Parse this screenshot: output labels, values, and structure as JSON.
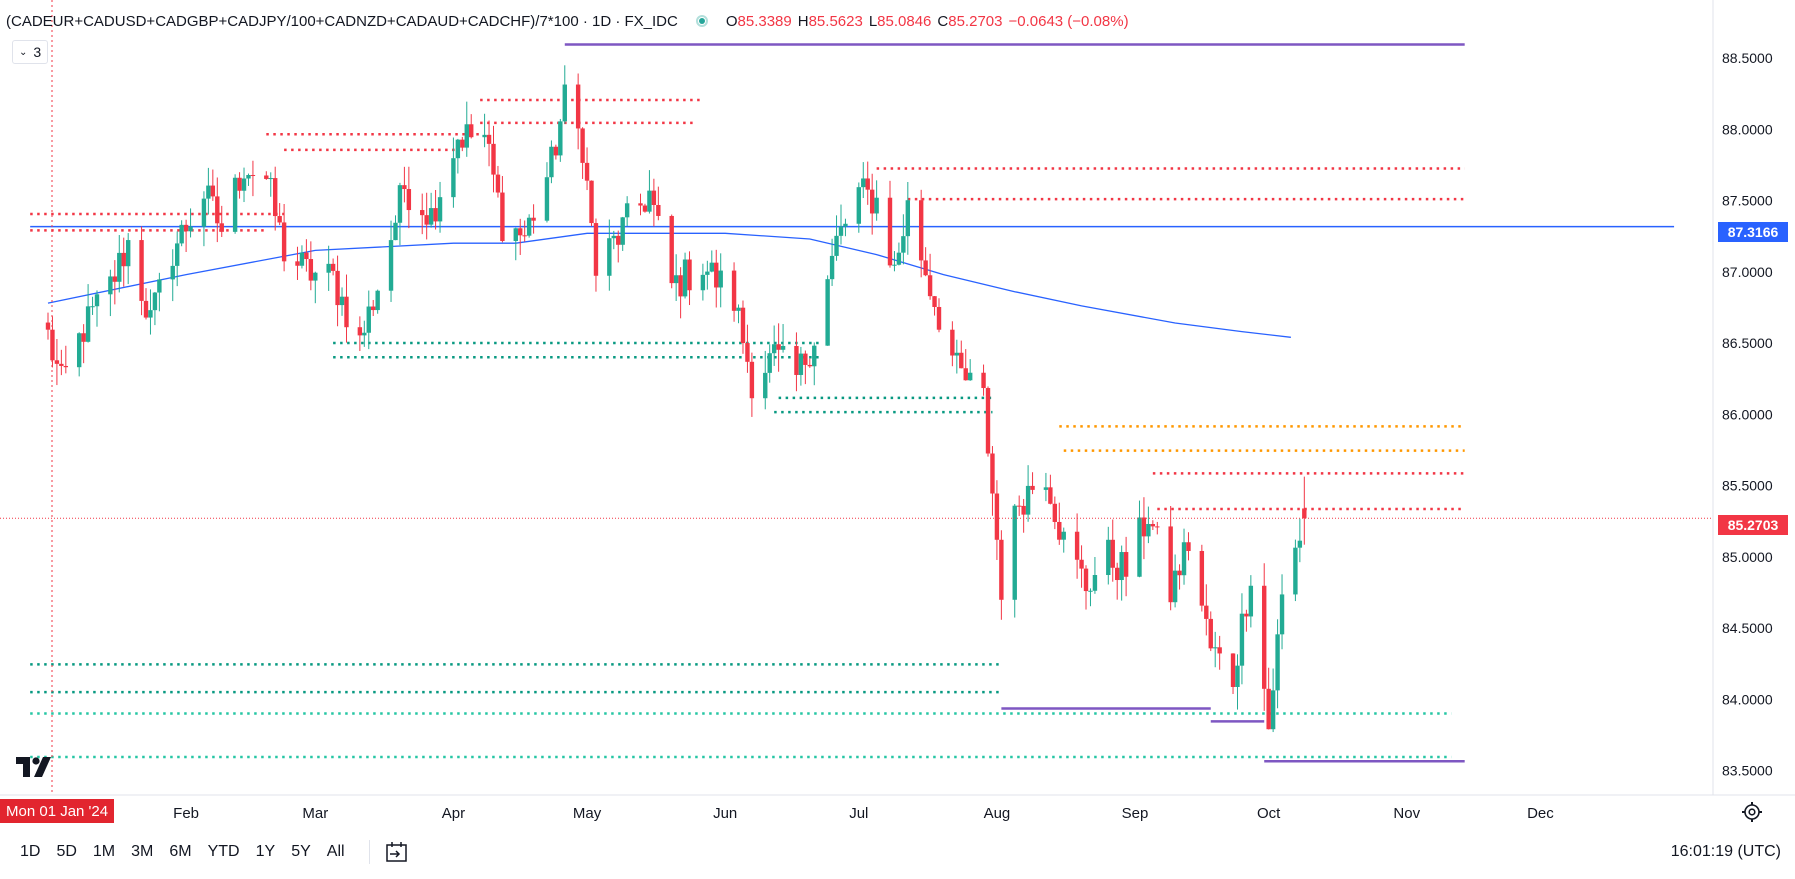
{
  "header": {
    "symbol": "(CADEUR+CADUSD+CADGBP+CADJPY/100+CADNZD+CADAUD+CADCHF)/7*100 · 1D · FX_IDC",
    "ohlc": {
      "o_label": "O",
      "o": "85.3389",
      "h_label": "H",
      "h": "85.5623",
      "l_label": "L",
      "l": "85.0846",
      "c_label": "C",
      "c": "85.2703",
      "change": "−0.0643 (−0.08%)"
    },
    "indicator_count": "3"
  },
  "crosshair_date": "Mon 01 Jan '24",
  "price_tags": {
    "level": "87.3166",
    "last": "85.2703"
  },
  "range_buttons": [
    "1D",
    "5D",
    "1M",
    "3M",
    "6M",
    "YTD",
    "1Y",
    "5Y",
    "All"
  ],
  "clock": "16:01:19 (UTC)",
  "colors": {
    "up": "#22ab94",
    "down": "#f23645",
    "ma": "#2962ff",
    "hline": "#2962ff",
    "purple": "#7e57c2",
    "orange": "#ff9800",
    "green_line": "#089981",
    "teal_line": "#26c6a4"
  },
  "chart_data": {
    "type": "candlestick",
    "yaxis": {
      "ticks": [
        "88.5000",
        "88.0000",
        "87.5000",
        "87.0000",
        "86.5000",
        "86.0000",
        "85.5000",
        "85.0000",
        "84.5000",
        "84.0000",
        "83.5000"
      ],
      "range": [
        83.4,
        88.95
      ]
    },
    "xaxis": {
      "ticks": [
        "Feb",
        "Mar",
        "Apr",
        "May",
        "Jun",
        "Jul",
        "Aug",
        "Sep",
        "Oct",
        "Nov",
        "Dec"
      ],
      "start": "2024-01-01",
      "end": "2024-12-31"
    },
    "close_path": [
      [
        "2024-01-01",
        86.55
      ],
      [
        "2024-01-04",
        86.2
      ],
      [
        "2024-01-09",
        86.6
      ],
      [
        "2024-01-15",
        86.9
      ],
      [
        "2024-01-19",
        87.2
      ],
      [
        "2024-01-24",
        86.65
      ],
      [
        "2024-01-29",
        87.15
      ],
      [
        "2024-02-05",
        87.55
      ],
      [
        "2024-02-09",
        87.3
      ],
      [
        "2024-02-14",
        87.75
      ],
      [
        "2024-02-19",
        87.65
      ],
      [
        "2024-02-23",
        87.15
      ],
      [
        "2024-02-28",
        87.0
      ],
      [
        "2024-03-05",
        86.95
      ],
      [
        "2024-03-11",
        86.5
      ],
      [
        "2024-03-15",
        86.9
      ],
      [
        "2024-03-21",
        87.6
      ],
      [
        "2024-03-27",
        87.4
      ],
      [
        "2024-04-02",
        87.95
      ],
      [
        "2024-04-08",
        87.95
      ],
      [
        "2024-04-12",
        87.35
      ],
      [
        "2024-04-17",
        87.25
      ],
      [
        "2024-04-23",
        87.75
      ],
      [
        "2024-04-26",
        88.2
      ],
      [
        "2024-04-30",
        87.9
      ],
      [
        "2024-05-03",
        87.0
      ],
      [
        "2024-05-09",
        87.3
      ],
      [
        "2024-05-15",
        87.55
      ],
      [
        "2024-05-20",
        86.9
      ],
      [
        "2024-05-27",
        87.05
      ],
      [
        "2024-06-03",
        86.8
      ],
      [
        "2024-06-07",
        86.25
      ],
      [
        "2024-06-12",
        86.4
      ],
      [
        "2024-06-17",
        86.25
      ],
      [
        "2024-06-21",
        86.55
      ],
      [
        "2024-06-26",
        87.2
      ],
      [
        "2024-07-01",
        87.55
      ],
      [
        "2024-07-05",
        87.5
      ],
      [
        "2024-07-09",
        87.0
      ],
      [
        "2024-07-12",
        87.45
      ],
      [
        "2024-07-17",
        86.9
      ],
      [
        "2024-07-23",
        86.3
      ],
      [
        "2024-07-29",
        86.1
      ],
      [
        "2024-08-02",
        84.8
      ],
      [
        "2024-08-06",
        85.4
      ],
      [
        "2024-08-12",
        85.6
      ],
      [
        "2024-08-16",
        85.1
      ],
      [
        "2024-08-21",
        84.8
      ],
      [
        "2024-08-26",
        85.0
      ],
      [
        "2024-08-30",
        84.9
      ],
      [
        "2024-09-04",
        85.3
      ],
      [
        "2024-09-09",
        84.75
      ],
      [
        "2024-09-13",
        85.1
      ],
      [
        "2024-09-18",
        84.35
      ],
      [
        "2024-09-23",
        84.15
      ],
      [
        "2024-09-27",
        84.9
      ],
      [
        "2024-10-01",
        83.8
      ],
      [
        "2024-10-04",
        84.7
      ],
      [
        "2024-10-09",
        85.27
      ]
    ],
    "moving_average": [
      [
        "2024-01-01",
        86.78
      ],
      [
        "2024-02-01",
        86.98
      ],
      [
        "2024-03-01",
        87.15
      ],
      [
        "2024-04-01",
        87.2
      ],
      [
        "2024-04-15",
        87.2
      ],
      [
        "2024-05-01",
        87.27
      ],
      [
        "2024-06-01",
        87.27
      ],
      [
        "2024-06-20",
        87.23
      ],
      [
        "2024-07-05",
        87.12
      ],
      [
        "2024-07-20",
        86.98
      ],
      [
        "2024-08-05",
        86.86
      ],
      [
        "2024-08-20",
        86.76
      ],
      [
        "2024-09-10",
        86.64
      ],
      [
        "2024-09-25",
        86.58
      ],
      [
        "2024-10-06",
        86.54
      ]
    ],
    "horizontal_lines": [
      {
        "y": 87.3166,
        "style": "solid",
        "color": "#2962ff",
        "from": "2023-12-28",
        "to": "2024-12-31",
        "width": 1.5
      },
      {
        "y": 88.595,
        "style": "solid",
        "color": "#7e57c2",
        "from": "2024-04-26",
        "to": "2024-11-14",
        "width": 2.5
      },
      {
        "y": 87.405,
        "style": "dotted",
        "color": "#f23645",
        "from": "2023-12-28",
        "to": "2024-02-23"
      },
      {
        "y": 87.29,
        "style": "dotted",
        "color": "#f23645",
        "from": "2023-12-28",
        "to": "2024-02-19"
      },
      {
        "y": 87.965,
        "style": "dotted",
        "color": "#f23645",
        "from": "2024-02-19",
        "to": "2024-04-07"
      },
      {
        "y": 87.855,
        "style": "dotted",
        "color": "#f23645",
        "from": "2024-02-23",
        "to": "2024-04-02"
      },
      {
        "y": 88.205,
        "style": "dotted",
        "color": "#f23645",
        "from": "2024-04-07",
        "to": "2024-05-27"
      },
      {
        "y": 88.045,
        "style": "dotted",
        "color": "#f23645",
        "from": "2024-04-07",
        "to": "2024-05-25"
      },
      {
        "y": 87.725,
        "style": "dotted",
        "color": "#f23645",
        "from": "2024-07-05",
        "to": "2024-11-14"
      },
      {
        "y": 87.51,
        "style": "dotted",
        "color": "#f23645",
        "from": "2024-07-12",
        "to": "2024-11-14"
      },
      {
        "y": 85.915,
        "style": "dotted",
        "color": "#ff9800",
        "from": "2024-08-15",
        "to": "2024-11-14"
      },
      {
        "y": 85.745,
        "style": "dotted",
        "color": "#ff9800",
        "from": "2024-08-16",
        "to": "2024-11-14"
      },
      {
        "y": 85.585,
        "style": "dotted",
        "color": "#f23645",
        "from": "2024-09-05",
        "to": "2024-11-14"
      },
      {
        "y": 85.335,
        "style": "dotted",
        "color": "#f23645",
        "from": "2024-09-06",
        "to": "2024-11-14"
      },
      {
        "y": 86.5,
        "style": "dotted",
        "color": "#089981",
        "from": "2024-03-05",
        "to": "2024-06-22"
      },
      {
        "y": 86.4,
        "style": "dotted",
        "color": "#089981",
        "from": "2024-03-05",
        "to": "2024-06-22"
      },
      {
        "y": 86.115,
        "style": "dotted",
        "color": "#089981",
        "from": "2024-06-13",
        "to": "2024-07-31"
      },
      {
        "y": 86.015,
        "style": "dotted",
        "color": "#089981",
        "from": "2024-06-12",
        "to": "2024-07-31"
      },
      {
        "y": 84.245,
        "style": "dotted",
        "color": "#089981",
        "from": "2023-12-28",
        "to": "2024-08-02"
      },
      {
        "y": 84.05,
        "style": "dotted",
        "color": "#089981",
        "from": "2023-12-28",
        "to": "2024-08-02"
      },
      {
        "y": 83.9,
        "style": "dotted",
        "color": "#26c6a4",
        "from": "2023-12-28",
        "to": "2024-11-11"
      },
      {
        "y": 83.595,
        "style": "dotted",
        "color": "#26c6a4",
        "from": "2023-12-28",
        "to": "2024-11-11"
      },
      {
        "y": 83.935,
        "style": "solid",
        "color": "#7e57c2",
        "from": "2024-08-02",
        "to": "2024-09-18",
        "width": 2.5
      },
      {
        "y": 83.845,
        "style": "solid",
        "color": "#7e57c2",
        "from": "2024-09-18",
        "to": "2024-09-30",
        "width": 2.5
      },
      {
        "y": 83.565,
        "style": "solid",
        "color": "#7e57c2",
        "from": "2024-09-30",
        "to": "2024-11-14",
        "width": 2.5
      }
    ],
    "last_price": 85.2703
  }
}
